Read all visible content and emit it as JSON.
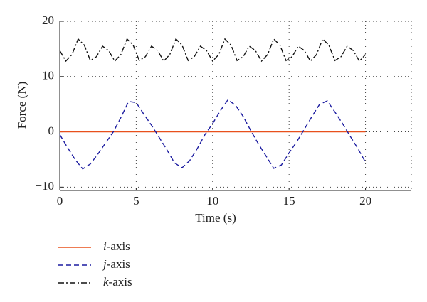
{
  "chart_data": {
    "type": "line",
    "x_label": "Time (s)",
    "y_label": "Force (N)",
    "xlim": [
      0,
      23
    ],
    "ylim": [
      -10.6,
      20
    ],
    "xticks": [
      0,
      5,
      10,
      15,
      20
    ],
    "yticks": [
      {
        "value": -10,
        "label": "−10"
      },
      0,
      10,
      20
    ],
    "grid": true,
    "legend": "below",
    "series": [
      {
        "name": "i-axis",
        "color": "#e8501c",
        "dash": "solid",
        "x": [
          0,
          20
        ],
        "values": [
          0,
          0
        ]
      },
      {
        "name": "j-axis",
        "color": "#1c1ca0",
        "dash": "dashed",
        "x": [
          0,
          0.5,
          1,
          1.5,
          2,
          2.5,
          3,
          3.5,
          4,
          4.5,
          5,
          5.5,
          6,
          6.5,
          7,
          7.5,
          8,
          8.5,
          9,
          9.5,
          10,
          10.5,
          11,
          11.5,
          12,
          12.5,
          13,
          13.5,
          14,
          14.5,
          15,
          15.5,
          16,
          16.5,
          17,
          17.5,
          18,
          18.5,
          19,
          19.5,
          20
        ],
        "values": [
          -0.5,
          -2.8,
          -5.0,
          -6.7,
          -5.8,
          -4.0,
          -2.0,
          0.0,
          2.6,
          5.5,
          5.3,
          3.2,
          1.2,
          -1.0,
          -3.2,
          -5.6,
          -6.5,
          -5.2,
          -3.0,
          -0.5,
          1.5,
          3.8,
          5.8,
          4.8,
          2.8,
          0.2,
          -2.2,
          -4.4,
          -6.6,
          -6.0,
          -3.8,
          -1.8,
          0.5,
          2.8,
          5.0,
          5.6,
          3.6,
          1.5,
          -0.8,
          -3.0,
          -5.5
        ]
      },
      {
        "name": "k-axis",
        "color": "#111111",
        "dash": "dashdot",
        "x": [
          0,
          0.4,
          0.8,
          1.2,
          1.6,
          2,
          2.4,
          2.8,
          3.2,
          3.6,
          4,
          4.4,
          4.8,
          5.2,
          5.6,
          6,
          6.4,
          6.8,
          7.2,
          7.6,
          8,
          8.4,
          8.8,
          9.2,
          9.6,
          10,
          10.4,
          10.8,
          11.2,
          11.6,
          12,
          12.4,
          12.8,
          13.2,
          13.6,
          14,
          14.4,
          14.8,
          15.2,
          15.6,
          16,
          16.4,
          16.8,
          17.2,
          17.6,
          18,
          18.4,
          18.8,
          19.2,
          19.6,
          20
        ],
        "values": [
          14.7,
          12.8,
          14.0,
          16.8,
          15.7,
          12.9,
          13.6,
          15.5,
          14.7,
          12.8,
          14.0,
          16.8,
          15.7,
          12.9,
          13.6,
          15.5,
          14.7,
          12.8,
          14.0,
          16.8,
          15.7,
          12.9,
          13.6,
          15.5,
          14.7,
          12.8,
          14.0,
          16.8,
          15.7,
          12.9,
          13.6,
          15.5,
          14.7,
          12.8,
          14.0,
          16.8,
          15.7,
          12.9,
          13.6,
          15.5,
          14.7,
          12.8,
          14.0,
          16.8,
          15.7,
          12.9,
          13.6,
          15.5,
          14.7,
          12.8,
          14.0
        ]
      }
    ]
  }
}
